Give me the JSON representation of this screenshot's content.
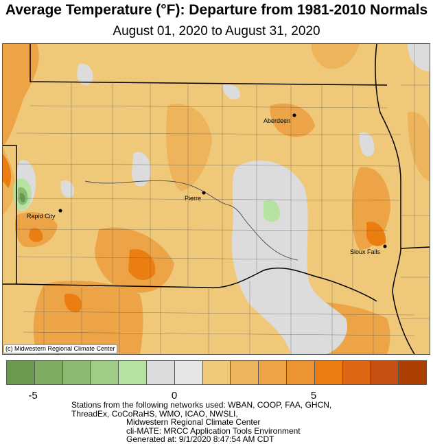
{
  "title": "Average Temperature (°F): Departure from 1981-2010 Normals",
  "subtitle": "August 01, 2020 to August 31, 2020",
  "copyright": "(c) Midwestern Regional Climate Center",
  "cities": [
    {
      "id": "aberdeen",
      "name": "Aberdeen"
    },
    {
      "id": "pierre",
      "name": "Pierre"
    },
    {
      "id": "rapid-city",
      "name": "Rapid City"
    },
    {
      "id": "sioux-falls",
      "name": "Sioux Falls"
    }
  ],
  "legend": {
    "colors": [
      "#6a9a50",
      "#7eac62",
      "#8cba72",
      "#a0cc86",
      "#b6e2a2",
      "#dcdcdc",
      "#e6e6e6",
      "#efc87a",
      "#eeb45c",
      "#eca446",
      "#ec9332",
      "#ea7e10",
      "#dd6614",
      "#c65010",
      "#ac4004"
    ],
    "ticks": [
      "-5",
      "0",
      "5"
    ]
  },
  "footer": {
    "line1": "Stations from the following networks used: WBAN, COOP, FAA, GHCN,",
    "line2": "ThreadEx, CoCoRaHS, WMO, ICAO, NWSLI,",
    "line3": "Midwestern Regional Climate Center",
    "line4": "cli-MATE: MRCC Application Tools Environment",
    "line5": "Generated at: 9/1/2020 8:47:54 AM CDT"
  }
}
